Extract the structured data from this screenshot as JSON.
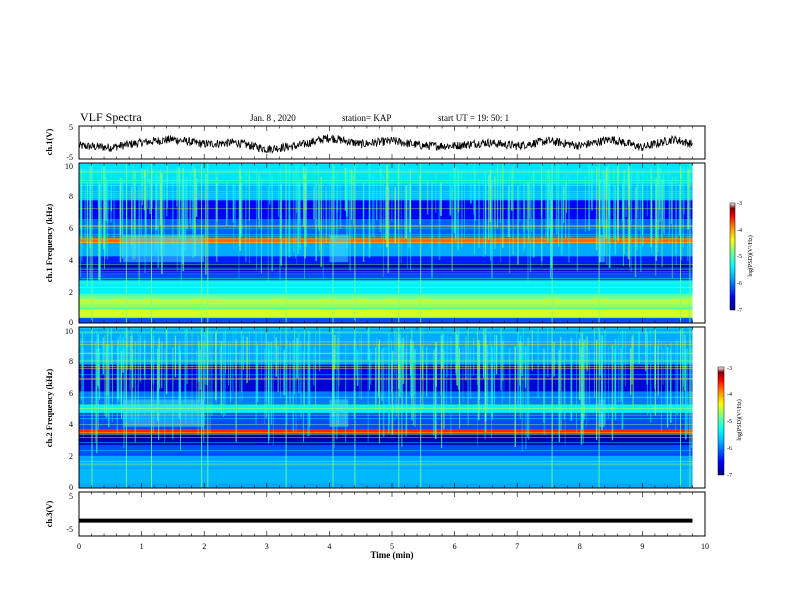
{
  "header": {
    "title": "VLF Spectra",
    "date": "Jan. 8 , 2020",
    "station": "station= KAP",
    "start_ut": "start UT = 19: 50: 1"
  },
  "colorbar": {
    "label": "log(PSD)(V²/Hz)",
    "ticks": [
      "-3",
      "-4",
      "-5",
      "-6",
      "-7"
    ],
    "colors": [
      "#000080",
      "#0000ff",
      "#00aaff",
      "#00ffff",
      "#80ff80",
      "#ffff00",
      "#ff8000",
      "#ff0000",
      "#800000",
      "#ffffff"
    ]
  },
  "chart_data": [
    {
      "type": "line",
      "name": "ch1-waveform",
      "ylabel": "ch.1(V)",
      "ylim": [
        -5,
        5
      ],
      "yticks": [
        "5",
        "-5"
      ],
      "xlim": [
        0,
        10
      ],
      "trend": {
        "t": [
          0,
          0.5,
          1,
          1.5,
          2,
          2.5,
          3,
          3.5,
          4,
          4.5,
          5,
          5.5,
          6,
          6.5,
          7,
          7.5,
          8,
          8.5,
          9,
          9.5,
          9.8
        ],
        "v": [
          -1,
          -1.5,
          0,
          1,
          -0.5,
          0,
          -2,
          -1,
          1.5,
          -0.5,
          0.5,
          -1,
          -1,
          0,
          -1,
          0.5,
          -1,
          1,
          -1.5,
          1,
          -0.5
        ]
      }
    },
    {
      "type": "heatmap",
      "name": "ch1-spectrogram",
      "ylabel": "ch.1 Frequency (kHz)",
      "ylim": [
        0,
        10
      ],
      "yticks": [
        "0",
        "2",
        "4",
        "6",
        "8",
        "10"
      ],
      "xlim": [
        0,
        10
      ],
      "data_end_min": 9.8,
      "zlim": [
        -7,
        -3
      ],
      "time_segments": [
        {
          "t0": 0,
          "t1": 2.0,
          "mode": "normal"
        },
        {
          "t0": 2.0,
          "t1": 4.0,
          "mode": "quiet"
        },
        {
          "t0": 4.0,
          "t1": 4.3,
          "mode": "transition"
        },
        {
          "t0": 4.3,
          "t1": 7.6,
          "mode": "quiet"
        },
        {
          "t0": 7.6,
          "t1": 8.4,
          "mode": "normal"
        },
        {
          "t0": 8.4,
          "t1": 9.8,
          "mode": "quiet"
        }
      ]
    },
    {
      "type": "heatmap",
      "name": "ch2-spectrogram",
      "ylabel": "ch.2 Frequency (kHz)",
      "ylim": [
        0,
        10
      ],
      "yticks": [
        "0",
        "2",
        "4",
        "6",
        "8",
        "10"
      ],
      "xlim": [
        0,
        10
      ],
      "data_end_min": 9.8,
      "zlim": [
        -7,
        -3
      ]
    },
    {
      "type": "line",
      "name": "ch3-waveform",
      "ylabel": "ch.3(V)",
      "ylim": [
        -5,
        5
      ],
      "yticks": [
        "5",
        "-5"
      ],
      "xlim": [
        0,
        10
      ],
      "constant_value": -1.5,
      "xticks": [
        "0",
        "1",
        "2",
        "3",
        "4",
        "5",
        "6",
        "7",
        "8",
        "9",
        "10"
      ],
      "xlabel": "Time (min)"
    }
  ]
}
